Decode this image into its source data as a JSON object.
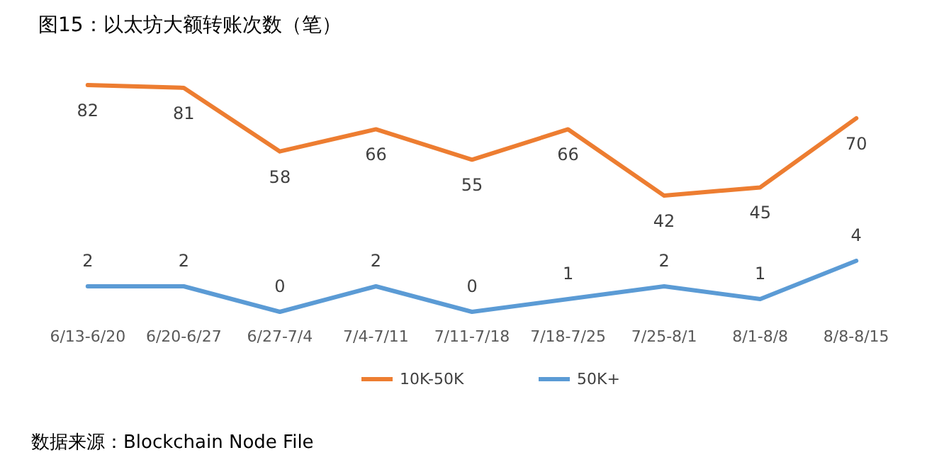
{
  "chart_data": [
    {
      "type": "line",
      "title": "图15：以太坊大额转账次数（笔）",
      "categories": [
        null,
        null,
        null,
        null,
        null,
        null,
        null,
        null,
        null
      ],
      "series": [
        {
          "name": "10K-50K",
          "color": "#ed7d31",
          "values": [
            82,
            81,
            58,
            66,
            55,
            66,
            42,
            45,
            70
          ]
        }
      ],
      "data_labels": true,
      "grid": false,
      "legend": "bottom",
      "marker": "none",
      "line_style": "solid",
      "tick_labels": false
    },
    {
      "type": "line",
      "categories": [
        "6/13-6/20",
        "6/20-6/27",
        "6/27-7/4",
        "7/4-7/11",
        "7/11-7/18",
        "7/18-7/25",
        "7/25-8/1",
        "8/1-8/8",
        "8/8-8/15"
      ],
      "series": [
        {
          "name": "50K+",
          "color": "#5b9bd5",
          "values": [
            2,
            2,
            0,
            2,
            0,
            1,
            2,
            1,
            4
          ]
        }
      ],
      "data_labels": true,
      "grid": false,
      "legend": "bottom",
      "marker": "none",
      "line_style": "solid",
      "tick_labels": "x",
      "annotations": [
        "数据来源：Blockchain Node File"
      ]
    }
  ]
}
